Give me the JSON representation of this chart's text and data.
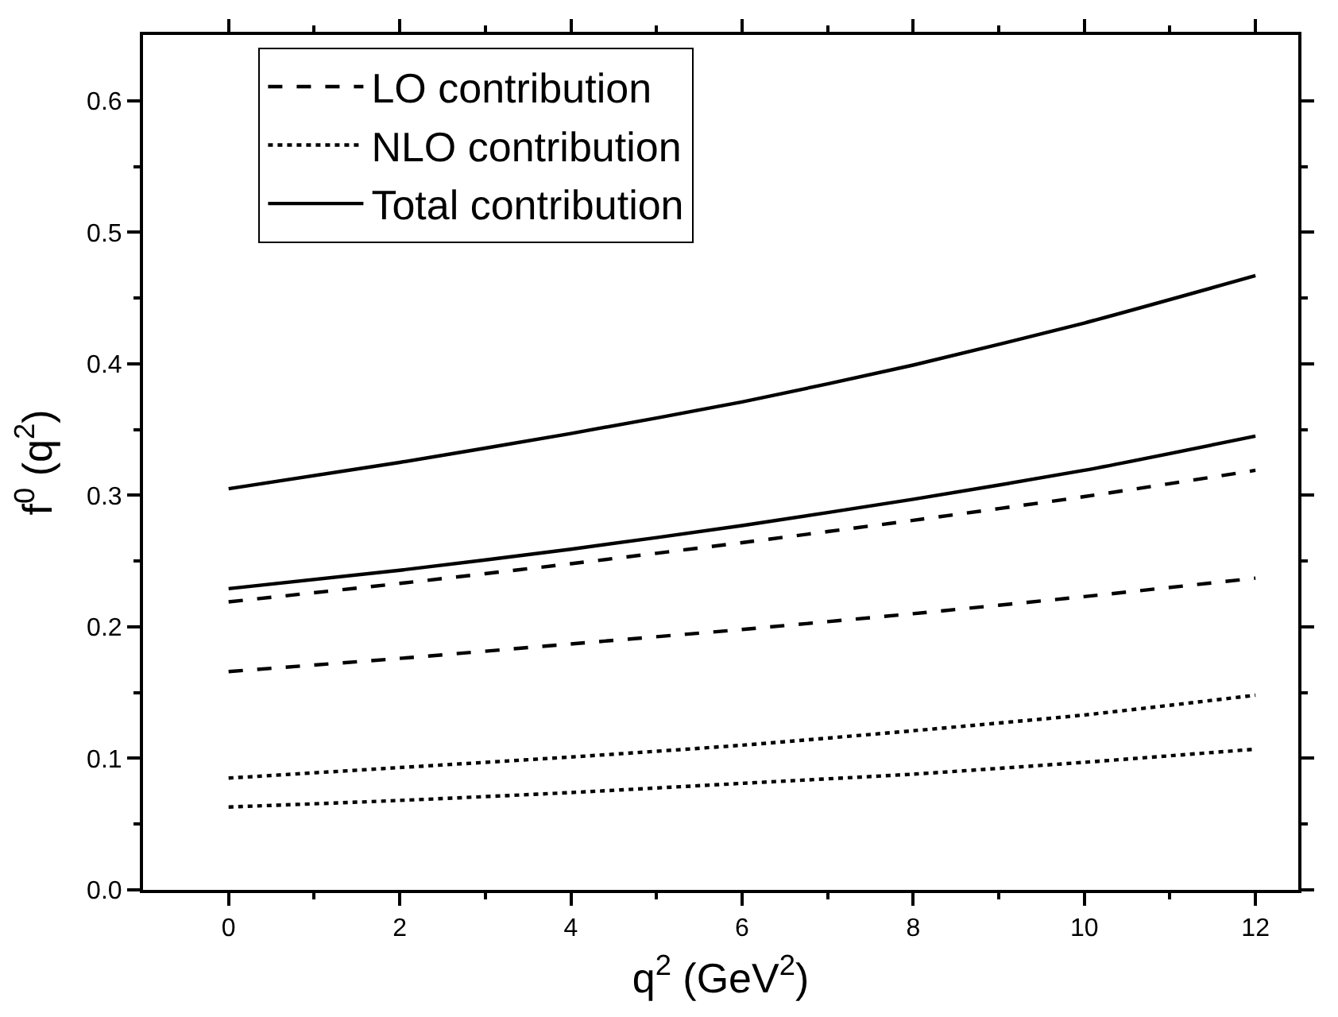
{
  "chart_data": {
    "type": "line",
    "xlabel": "q$^{2}$ (GeV$^{2}$)",
    "ylabel": "f$^{0}$ (q$^{2}$)",
    "x": [
      0,
      2,
      4,
      6,
      8,
      10,
      12
    ],
    "series": [
      {
        "name": "LO contribution",
        "color": "#000000",
        "line_style": "dashed",
        "values": [
          0.219,
          0.233,
          0.248,
          0.264,
          0.281,
          0.299,
          0.319
        ]
      },
      {
        "color": "#000000",
        "line_style": "dashed",
        "values": [
          0.166,
          0.176,
          0.187,
          0.198,
          0.21,
          0.223,
          0.237
        ]
      },
      {
        "name": "NLO contribution",
        "color": "#000000",
        "line_style": "dotted",
        "values": [
          0.085,
          0.093,
          0.101,
          0.11,
          0.121,
          0.133,
          0.148
        ]
      },
      {
        "color": "#000000",
        "line_style": "dotted",
        "values": [
          0.063,
          0.068,
          0.074,
          0.081,
          0.088,
          0.097,
          0.107
        ]
      },
      {
        "name": "Total contribution",
        "color": "#000000",
        "line_style": "solid",
        "values": [
          0.305,
          0.325,
          0.347,
          0.371,
          0.399,
          0.431,
          0.467
        ]
      },
      {
        "color": "#000000",
        "line_style": "solid",
        "values": [
          0.229,
          0.243,
          0.259,
          0.277,
          0.297,
          0.319,
          0.345
        ]
      }
    ],
    "xlim": [
      -1,
      12.5
    ],
    "xticks": [
      0,
      {
        "value": 1,
        "label": null
      },
      2,
      {
        "value": 3,
        "label": null
      },
      4,
      {
        "value": 5,
        "label": null
      },
      6,
      {
        "value": 7,
        "label": null
      },
      8,
      {
        "value": 9,
        "label": null
      },
      10,
      {
        "value": 11,
        "label": null
      },
      12
    ],
    "ylim": [
      0,
      0.65
    ],
    "yticks": [
      {
        "value": 0,
        "label": "0.0"
      },
      {
        "value": 0.05,
        "label": null
      },
      0.1,
      {
        "value": 0.15,
        "label": null
      },
      0.2,
      {
        "value": 0.25,
        "label": null
      },
      0.3,
      {
        "value": 0.35,
        "label": null
      },
      0.4,
      {
        "value": 0.45,
        "label": null
      },
      0.5,
      {
        "value": 0.55,
        "label": null
      },
      0.6
    ],
    "legend": "top left",
    "marker": "none",
    "grid": false
  }
}
